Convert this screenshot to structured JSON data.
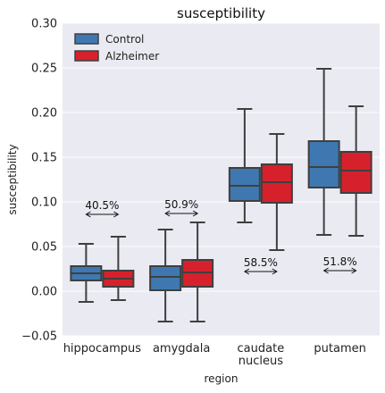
{
  "chart_data": {
    "type": "box",
    "title": "susceptibility",
    "xlabel": "region",
    "ylabel": "susceptibility",
    "ylim": [
      -0.05,
      0.3
    ],
    "yticks": [
      "−0.05",
      "0.00",
      "0.05",
      "0.10",
      "0.15",
      "0.20",
      "0.25",
      "0.30"
    ],
    "ytick_values": [
      -0.05,
      0.0,
      0.05,
      0.1,
      0.15,
      0.2,
      0.25,
      0.3
    ],
    "categories": [
      {
        "label_lines": [
          "hippocampus"
        ]
      },
      {
        "label_lines": [
          "amygdala"
        ]
      },
      {
        "label_lines": [
          "caudate",
          "nucleus"
        ]
      },
      {
        "label_lines": [
          "putamen"
        ]
      }
    ],
    "legend": {
      "position": "top-left"
    },
    "grid": true,
    "background": "#eaeaf2",
    "series": [
      {
        "name": "Control",
        "color": "#3f78b0",
        "boxes": [
          {
            "whislo": -0.012,
            "q1": 0.012,
            "med": 0.02,
            "q3": 0.028,
            "whishi": 0.053
          },
          {
            "whislo": -0.034,
            "q1": 0.001,
            "med": 0.016,
            "q3": 0.028,
            "whishi": 0.069
          },
          {
            "whislo": 0.077,
            "q1": 0.101,
            "med": 0.118,
            "q3": 0.138,
            "whishi": 0.204
          },
          {
            "whislo": 0.063,
            "q1": 0.116,
            "med": 0.139,
            "q3": 0.168,
            "whishi": 0.249
          }
        ]
      },
      {
        "name": "Alzheimer",
        "color": "#d6212c",
        "boxes": [
          {
            "whislo": -0.01,
            "q1": 0.005,
            "med": 0.014,
            "q3": 0.023,
            "whishi": 0.061
          },
          {
            "whislo": -0.034,
            "q1": 0.005,
            "med": 0.021,
            "q3": 0.035,
            "whishi": 0.077
          },
          {
            "whislo": 0.046,
            "q1": 0.099,
            "med": 0.122,
            "q3": 0.142,
            "whishi": 0.176
          },
          {
            "whislo": 0.062,
            "q1": 0.11,
            "med": 0.135,
            "q3": 0.156,
            "whishi": 0.207
          }
        ]
      }
    ],
    "annotations": [
      {
        "category": 0,
        "text": "40.5%",
        "y": 0.086
      },
      {
        "category": 1,
        "text": "50.9%",
        "y": 0.087
      },
      {
        "category": 2,
        "text": "58.5%",
        "y": 0.022
      },
      {
        "category": 3,
        "text": "51.8%",
        "y": 0.023
      }
    ]
  }
}
